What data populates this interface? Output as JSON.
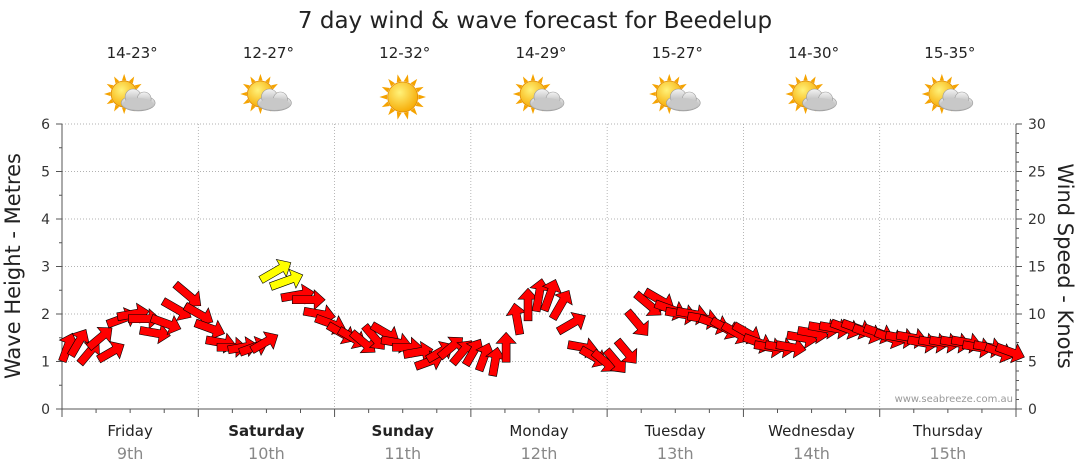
{
  "chart_data": {
    "type": "line",
    "title": "7 day wind & wave forecast for Beedelup",
    "ylabel_left": "Wave Height - Metres",
    "ylabel_right": "Wind Speed - Knots",
    "ylim_left": [
      0,
      6
    ],
    "ylim_right": [
      0,
      30
    ],
    "yticks_left": [
      "0",
      "1",
      "2",
      "3",
      "4",
      "5",
      "6"
    ],
    "yticks_right": [
      "0",
      "5",
      "10",
      "15",
      "20",
      "25",
      "30"
    ],
    "grid": true,
    "credit": "www.seabreeze.com.au",
    "days": [
      {
        "name": "Friday",
        "date": "9th",
        "bold": false,
        "temp": "14-23°",
        "weather": "partly-cloudy-icon"
      },
      {
        "name": "Saturday",
        "date": "10th",
        "bold": true,
        "temp": "12-27°",
        "weather": "partly-cloudy-icon"
      },
      {
        "name": "Sunday",
        "date": "11th",
        "bold": true,
        "temp": "12-32°",
        "weather": "sunny-icon"
      },
      {
        "name": "Monday",
        "date": "12th",
        "bold": false,
        "temp": "14-29°",
        "weather": "partly-cloudy-icon"
      },
      {
        "name": "Tuesday",
        "date": "13th",
        "bold": false,
        "temp": "15-27°",
        "weather": "partly-cloudy-icon"
      },
      {
        "name": "Wednesday",
        "date": "14th",
        "bold": false,
        "temp": "14-30°",
        "weather": "partly-cloudy-icon"
      },
      {
        "name": "Thursday",
        "date": "15th",
        "bold": false,
        "temp": "15-35°",
        "weather": "partly-cloudy-icon"
      }
    ],
    "colors": {
      "wind_arrow": "#ff0000",
      "strong_wind_arrow": "#ffff00",
      "grid": "#999999",
      "axis": "#555555"
    },
    "series": [
      {
        "wind_knots": [
          6.5,
          7,
          6,
          7.5,
          6,
          9.5,
          10,
          9.5,
          8,
          9,
          10.5,
          12,
          10,
          8.5,
          7,
          6.5,
          6.5,
          6.5,
          7,
          14.5,
          13.5,
          12,
          11.5,
          10,
          9,
          8,
          7.5,
          7,
          7.5,
          8,
          7,
          6.5,
          6,
          5,
          6,
          6.5,
          6,
          6,
          5.5,
          5,
          6.5,
          9.5,
          11,
          12,
          12,
          11,
          9,
          6.5,
          5.5,
          5,
          5,
          6,
          9,
          11,
          11.5,
          10.5,
          10,
          10,
          9.5,
          9,
          8.5,
          8,
          8,
          7,
          6.5,
          6.5,
          6.5,
          7.5,
          8,
          8.5,
          8.5,
          8.5,
          8.5,
          8,
          8,
          7.5,
          7.5,
          7.5,
          7,
          7,
          7,
          7,
          7,
          6.5,
          6.5,
          6,
          6
        ],
        "wind_dir_deg": [
          200,
          210,
          220,
          230,
          240,
          250,
          260,
          270,
          280,
          290,
          300,
          310,
          300,
          290,
          280,
          270,
          260,
          250,
          240,
          240,
          250,
          260,
          270,
          280,
          290,
          300,
          300,
          310,
          320,
          300,
          280,
          270,
          260,
          250,
          240,
          230,
          220,
          210,
          200,
          190,
          180,
          170,
          180,
          190,
          200,
          210,
          240,
          280,
          300,
          310,
          320,
          320,
          320,
          310,
          300,
          290,
          280,
          280,
          280,
          290,
          300,
          300,
          300,
          290,
          280,
          280,
          280,
          280,
          280,
          280,
          280,
          290,
          290,
          290,
          290,
          290,
          280,
          280,
          280,
          280,
          280,
          280,
          280,
          280,
          280,
          290,
          290
        ],
        "wave_m": [
          1.3,
          1.4,
          1.2,
          1.5,
          1.2,
          1.9,
          2,
          1.9,
          1.6,
          1.8,
          2.1,
          2.4,
          2,
          1.7,
          1.4,
          1.3,
          1.3,
          1.3,
          1.4,
          2.9,
          2.7,
          2.4,
          2.3,
          2,
          1.8,
          1.6,
          1.5,
          1.4,
          1.5,
          1.6,
          1.4,
          1.3,
          1.2,
          1,
          1.2,
          1.3,
          1.2,
          1.2,
          1.1,
          1,
          1.3,
          1.9,
          2.2,
          2.4,
          2.4,
          2.2,
          1.8,
          1.3,
          1.1,
          1,
          1,
          1.2,
          1.8,
          2.2,
          2.3,
          2.1,
          2,
          2,
          1.9,
          1.8,
          1.7,
          1.6,
          1.6,
          1.4,
          1.3,
          1.3,
          1.3,
          1.5,
          1.6,
          1.7,
          1.7,
          1.7,
          1.7,
          1.6,
          1.6,
          1.5,
          1.5,
          1.5,
          1.4,
          1.4,
          1.4,
          1.4,
          1.4,
          1.3,
          1.3,
          1.2,
          1.2
        ]
      }
    ]
  }
}
